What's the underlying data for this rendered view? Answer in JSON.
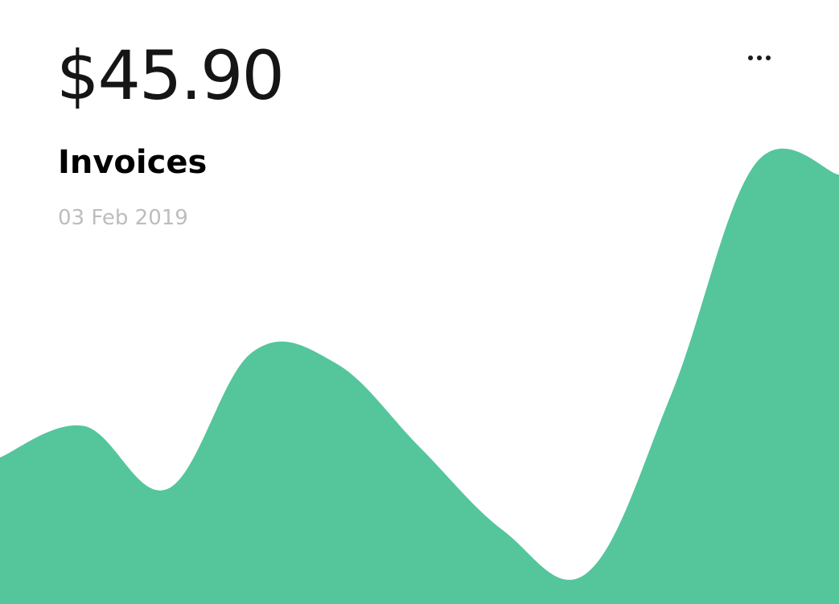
{
  "card": {
    "amount": "$45.90",
    "title": "Invoices",
    "date": "03 Feb 2019",
    "more_icon": "more-horizontal-icon"
  },
  "colors": {
    "area_fill": "#55c59c",
    "amount_text": "#151515",
    "date_text": "#bdbdbd"
  },
  "chart_data": {
    "type": "area",
    "x": [
      0,
      1,
      2,
      3,
      4,
      5,
      6,
      7,
      8,
      9,
      10
    ],
    "values": [
      28,
      34,
      22,
      48,
      46,
      30,
      14,
      6,
      40,
      84,
      82
    ],
    "ylim": [
      0,
      100
    ],
    "grid": false,
    "title": "",
    "xlabel": "",
    "ylabel": ""
  }
}
